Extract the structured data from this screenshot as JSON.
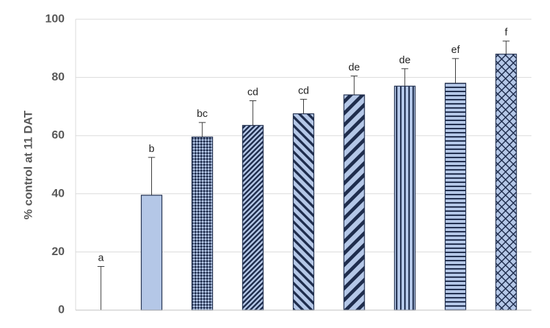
{
  "chart_data": {
    "type": "bar",
    "y_label": "% control at 11 DAT",
    "categories": [
      null,
      null,
      null,
      null,
      null,
      null,
      null,
      null,
      null
    ],
    "values": [
      0,
      39.5,
      59.5,
      63.5,
      67.5,
      74,
      77,
      78,
      88
    ],
    "errors": [
      15,
      13,
      5,
      8.5,
      5,
      6.5,
      6,
      8.5,
      4.5
    ],
    "annotations": [
      "a",
      "b",
      "bc",
      "cd",
      "cd",
      "de",
      "de",
      "ef",
      "f"
    ],
    "patterns": [
      "none",
      "solid",
      "checker",
      "diag-dense",
      "diag-back",
      "diag-wide",
      "vertical",
      "horizontal",
      "cross"
    ],
    "color": "#b4c7e7",
    "edge_color": "#1f2d4d",
    "ylim": [
      0,
      100
    ],
    "yticks": [
      0,
      20,
      40,
      60,
      80,
      100
    ],
    "grid": true
  }
}
